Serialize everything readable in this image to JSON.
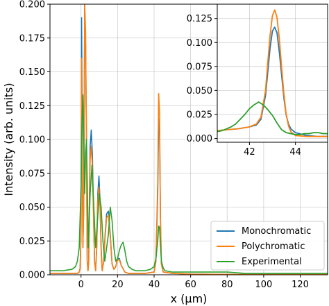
{
  "chart_data": [
    {
      "type": "line",
      "xlabel": "x (µm)",
      "ylabel": "Intensity (arb. units)",
      "xlim": [
        -17,
        135
      ],
      "ylim": [
        0,
        0.2
      ],
      "xticks": [
        0,
        20,
        40,
        60,
        80,
        100,
        120
      ],
      "yticks": [
        0.0,
        0.025,
        0.05,
        0.075,
        0.1,
        0.125,
        0.15,
        0.175,
        0.2
      ],
      "grid": true,
      "legend": "bottom-right",
      "series": [
        {
          "name": "Monochromatic",
          "color": "#1f77b4",
          "x": [
            -17,
            -2,
            -1,
            -0.5,
            0,
            0.3,
            0.6,
            1,
            1.5,
            2,
            2.5,
            3,
            3.4,
            3.8,
            4.2,
            4.6,
            5,
            5.6,
            6.2,
            6.8,
            7.4,
            8,
            8.6,
            9.2,
            9.8,
            10.4,
            11,
            11.6,
            12.4,
            13.2,
            14,
            15,
            16,
            17,
            18,
            19,
            20,
            21,
            22,
            24,
            26,
            30,
            35,
            40,
            41,
            42,
            42.5,
            43,
            43.5,
            44,
            45,
            50,
            60,
            80,
            100,
            135
          ],
          "y": [
            0.001,
            0.001,
            0.002,
            0.005,
            0.03,
            0.19,
            0.12,
            0.02,
            0.05,
            0.2,
            0.17,
            0.1,
            0.01,
            0.003,
            0.01,
            0.06,
            0.095,
            0.107,
            0.09,
            0.05,
            0.01,
            0.003,
            0.02,
            0.06,
            0.073,
            0.055,
            0.02,
            0.003,
            0.01,
            0.03,
            0.045,
            0.047,
            0.03,
            0.008,
            0.004,
            0.006,
            0.012,
            0.012,
            0.007,
            0.002,
            0.001,
            0.001,
            0.001,
            0.002,
            0.01,
            0.06,
            0.115,
            0.108,
            0.04,
            0.008,
            0.002,
            0.001,
            0.0005,
            0.0003,
            0.0002,
            0.0002
          ]
        },
        {
          "name": "Polychromatic",
          "color": "#ff7f0e",
          "x": [
            -17,
            -2,
            -1,
            -0.5,
            0,
            0.3,
            0.6,
            1,
            1.5,
            2,
            2.5,
            3,
            3.4,
            3.8,
            4.2,
            4.6,
            5,
            5.6,
            6.2,
            6.8,
            7.4,
            8,
            8.6,
            9.2,
            9.8,
            10.4,
            11,
            11.6,
            12.4,
            13.2,
            14,
            15,
            16,
            17,
            18,
            19,
            20,
            21,
            22,
            24,
            26,
            30,
            35,
            40,
            41,
            42,
            42.5,
            43,
            43.5,
            44,
            45,
            50,
            60,
            80,
            100,
            135
          ],
          "y": [
            0.001,
            0.001,
            0.002,
            0.005,
            0.03,
            0.16,
            0.11,
            0.02,
            0.05,
            0.2,
            0.18,
            0.09,
            0.01,
            0.003,
            0.01,
            0.05,
            0.085,
            0.095,
            0.08,
            0.045,
            0.01,
            0.003,
            0.02,
            0.055,
            0.065,
            0.05,
            0.018,
            0.003,
            0.01,
            0.028,
            0.042,
            0.044,
            0.028,
            0.008,
            0.004,
            0.006,
            0.011,
            0.011,
            0.007,
            0.002,
            0.001,
            0.001,
            0.001,
            0.002,
            0.01,
            0.07,
            0.134,
            0.12,
            0.04,
            0.008,
            0.002,
            0.001,
            0.0005,
            0.0003,
            0.0002,
            0.0002
          ]
        },
        {
          "name": "Experimental",
          "color": "#2ca02c",
          "x": [
            -17,
            -10,
            -5,
            -3,
            -2,
            -1,
            0,
            0.5,
            1,
            1.5,
            2,
            2.5,
            3,
            3.5,
            4,
            5,
            6,
            7,
            8,
            9,
            10,
            11,
            12,
            13,
            14,
            15,
            16,
            17,
            18,
            19,
            20,
            21,
            22,
            23,
            24,
            25,
            26,
            28,
            30,
            35,
            38,
            40,
            41,
            42,
            42.5,
            43,
            43.5,
            44,
            45,
            46,
            50,
            60,
            70,
            80,
            90,
            100,
            110,
            120,
            130,
            135
          ],
          "y": [
            0.003,
            0.003,
            0.004,
            0.006,
            0.01,
            0.02,
            0.065,
            0.11,
            0.133,
            0.1,
            0.06,
            0.09,
            0.1,
            0.06,
            0.02,
            0.06,
            0.081,
            0.05,
            0.02,
            0.04,
            0.06,
            0.05,
            0.025,
            0.01,
            0.02,
            0.03,
            0.05,
            0.04,
            0.02,
            0.01,
            0.012,
            0.018,
            0.022,
            0.024,
            0.018,
            0.01,
            0.006,
            0.004,
            0.003,
            0.003,
            0.004,
            0.006,
            0.012,
            0.025,
            0.036,
            0.035,
            0.022,
            0.01,
            0.005,
            0.003,
            0.002,
            0.002,
            0.002,
            0.002,
            0.001,
            0.001,
            0.001,
            0.001,
            0.001,
            0.001
          ]
        }
      ]
    },
    {
      "type": "line",
      "xlim": [
        40.6,
        45.4
      ],
      "ylim": [
        -0.004,
        0.14
      ],
      "xticks": [
        42,
        44
      ],
      "yticks": [
        0.0,
        0.025,
        0.05,
        0.075,
        0.1,
        0.125
      ],
      "grid": true,
      "series": [
        {
          "color": "#1f77b4",
          "x": [
            40.6,
            41,
            41.5,
            42,
            42.3,
            42.5,
            42.7,
            42.8,
            42.9,
            43,
            43.1,
            43.2,
            43.3,
            43.4,
            43.5,
            43.6,
            43.7,
            43.8,
            44,
            44.5,
            45,
            45.4
          ],
          "y": [
            0.008,
            0.009,
            0.01,
            0.012,
            0.014,
            0.02,
            0.045,
            0.07,
            0.095,
            0.112,
            0.116,
            0.11,
            0.09,
            0.066,
            0.042,
            0.024,
            0.015,
            0.01,
            0.006,
            0.003,
            0.002,
            0.002
          ]
        },
        {
          "color": "#ff7f0e",
          "x": [
            40.6,
            41,
            41.5,
            42,
            42.3,
            42.5,
            42.7,
            42.8,
            42.9,
            43,
            43.1,
            43.2,
            43.3,
            43.4,
            43.5,
            43.6,
            43.7,
            43.8,
            44,
            44.5,
            45,
            45.4
          ],
          "y": [
            0.008,
            0.009,
            0.01,
            0.012,
            0.015,
            0.022,
            0.05,
            0.08,
            0.108,
            0.128,
            0.134,
            0.126,
            0.104,
            0.074,
            0.046,
            0.025,
            0.013,
            0.007,
            0.003,
            0.002,
            0.002,
            0.002
          ]
        },
        {
          "color": "#2ca02c",
          "x": [
            40.6,
            40.8,
            41,
            41.2,
            41.4,
            41.6,
            41.8,
            42,
            42.2,
            42.4,
            42.6,
            42.8,
            43,
            43.2,
            43.4,
            43.6,
            43.8,
            44,
            44.2,
            44.4,
            44.6,
            44.8,
            45,
            45.2,
            45.4
          ],
          "y": [
            0.007,
            0.008,
            0.01,
            0.012,
            0.015,
            0.02,
            0.025,
            0.031,
            0.035,
            0.038,
            0.035,
            0.03,
            0.024,
            0.016,
            0.009,
            0.006,
            0.005,
            0.004,
            0.004,
            0.005,
            0.005,
            0.006,
            0.006,
            0.005,
            0.005
          ]
        }
      ]
    }
  ]
}
